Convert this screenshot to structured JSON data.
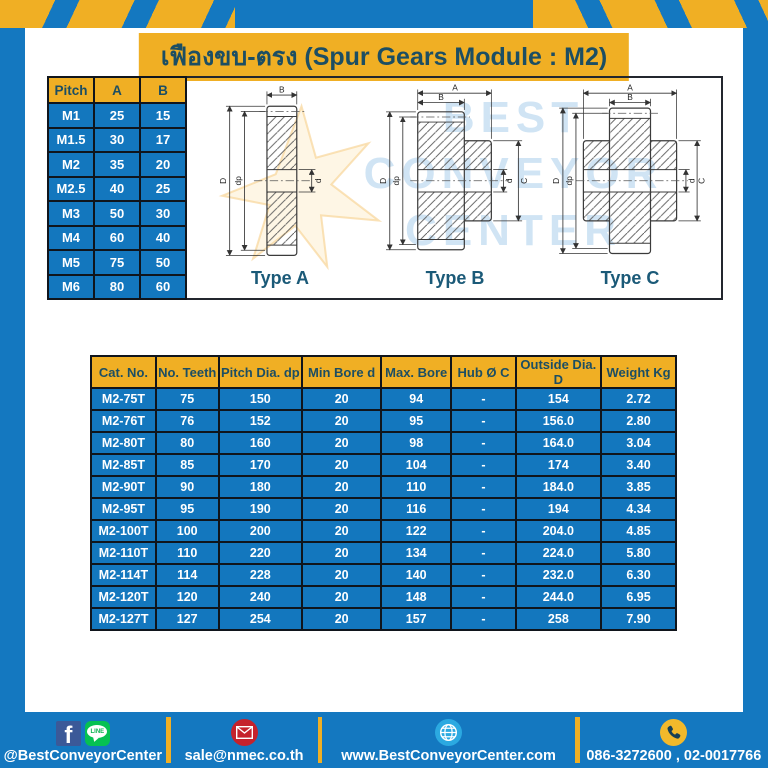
{
  "title": "เฟืองขบ-ตรง (Spur Gears Module : M2)",
  "pitch_table": {
    "headers": [
      "Pitch",
      "A",
      "B"
    ],
    "rows": [
      [
        "M1",
        "25",
        "15"
      ],
      [
        "M1.5",
        "30",
        "17"
      ],
      [
        "M2",
        "35",
        "20"
      ],
      [
        "M2.5",
        "40",
        "25"
      ],
      [
        "M3",
        "50",
        "30"
      ],
      [
        "M4",
        "60",
        "40"
      ],
      [
        "M5",
        "75",
        "50"
      ],
      [
        "M6",
        "80",
        "60"
      ]
    ]
  },
  "drawings": {
    "watermark_lines": [
      "BEST",
      "CONVEYOR",
      "CENTER"
    ],
    "types": [
      {
        "label": "Type A",
        "dim_width": "B",
        "dim_outer": "D",
        "dim_pitch": "dp",
        "dim_bore": "d"
      },
      {
        "label": "Type B",
        "dim_overall": "A",
        "dim_width": "B",
        "dim_outer": "D",
        "dim_pitch": "dp",
        "dim_bore": "d",
        "dim_hub": "C"
      },
      {
        "label": "Type C",
        "dim_overall": "A",
        "dim_width": "B",
        "dim_outer": "D",
        "dim_pitch": "dp",
        "dim_bore": "d",
        "dim_hub": "C"
      }
    ]
  },
  "spec_table": {
    "headers": [
      "Cat. No.",
      "No. Teeth",
      "Pitch Dia. dp",
      "Min Bore d",
      "Max. Bore",
      "Hub Ø C",
      "Outside Dia. D",
      "Weight Kg"
    ],
    "rows": [
      [
        "M2-75T",
        "75",
        "150",
        "20",
        "94",
        "-",
        "154",
        "2.72"
      ],
      [
        "M2-76T",
        "76",
        "152",
        "20",
        "95",
        "-",
        "156.0",
        "2.80"
      ],
      [
        "M2-80T",
        "80",
        "160",
        "20",
        "98",
        "-",
        "164.0",
        "3.04"
      ],
      [
        "M2-85T",
        "85",
        "170",
        "20",
        "104",
        "-",
        "174",
        "3.40"
      ],
      [
        "M2-90T",
        "90",
        "180",
        "20",
        "110",
        "-",
        "184.0",
        "3.85"
      ],
      [
        "M2-95T",
        "95",
        "190",
        "20",
        "116",
        "-",
        "194",
        "4.34"
      ],
      [
        "M2-100T",
        "100",
        "200",
        "20",
        "122",
        "-",
        "204.0",
        "4.85"
      ],
      [
        "M2-110T",
        "110",
        "220",
        "20",
        "134",
        "-",
        "224.0",
        "5.80"
      ],
      [
        "M2-114T",
        "114",
        "228",
        "20",
        "140",
        "-",
        "232.0",
        "6.30"
      ],
      [
        "M2-120T",
        "120",
        "240",
        "20",
        "148",
        "-",
        "244.0",
        "6.95"
      ],
      [
        "M2-127T",
        "127",
        "254",
        "20",
        "157",
        "-",
        "258",
        "7.90"
      ]
    ]
  },
  "footer": {
    "social": {
      "label": "@BestConveyorCenter",
      "facebook_letter": "f",
      "line_text": "LINE"
    },
    "email": {
      "label": "sale@nmec.co.th"
    },
    "website": {
      "label": "www.BestConveyorCenter.com"
    },
    "phone": {
      "label": "086-3272600 , 02-0017766"
    }
  },
  "colors": {
    "primary_blue": "#1478C0",
    "cell_blue": "#1377BE",
    "accent_yellow": "#F0AF24",
    "dark_navy": "#1C4E63",
    "watermark_blue": "#CEE3F4",
    "facebook_blue": "#3B5998",
    "line_green": "#06C152",
    "email_red": "#C5222C",
    "globe_blue": "#2BA9E1",
    "phone_yellow": "#F2B92B"
  }
}
